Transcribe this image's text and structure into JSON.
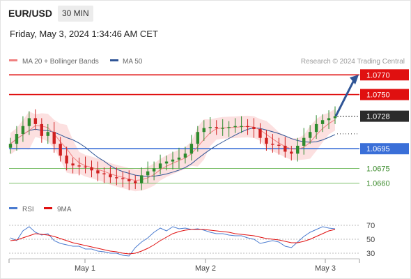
{
  "header": {
    "symbol": "EUR/USD",
    "timeframe": "30 MIN",
    "timestamp": "Friday, May 3, 2024 1:34:46 AM CET"
  },
  "legend": {
    "items": [
      {
        "label": "MA 20 + Bollinger Bands",
        "color": "#f08080"
      },
      {
        "label": "MA 50",
        "color": "#2f5596"
      }
    ],
    "credit": "Research © 2024 Trading Central"
  },
  "colors": {
    "resistance": "#e01010",
    "pivot": "#3a6fd8",
    "support": "#7bbf6a",
    "candle_up": "#2e8b2e",
    "candle_down": "#d02020",
    "bollinger_fill": "#fbd5d5",
    "ma20": "#f08080",
    "ma50": "#2f5596",
    "arrow": "#2f5596",
    "rsi": "#4a7bd0",
    "rsi_ma": "#e01010"
  },
  "chart_data": [
    {
      "type": "candlestick",
      "x_ticks": [
        "May 1",
        "May 2",
        "May 3"
      ],
      "ylim": [
        1.0647,
        1.0778
      ],
      "current_price": "1.0728",
      "levels": [
        {
          "value": 1.077,
          "label": "1.0770",
          "kind": "resistance",
          "boxed": true
        },
        {
          "value": 1.075,
          "label": "1.0750",
          "kind": "resistance",
          "boxed": true
        },
        {
          "value": 1.0695,
          "label": "1.0695",
          "kind": "pivot",
          "boxed": true
        },
        {
          "value": 1.0675,
          "label": "1.0675",
          "kind": "support",
          "boxed": false
        },
        {
          "value": 1.066,
          "label": "1.0660",
          "kind": "support",
          "boxed": false
        }
      ],
      "arrow": {
        "from_price": 1.0728,
        "to_price": 1.0768
      },
      "price_path": [
        1.07,
        1.071,
        1.0718,
        1.0726,
        1.072,
        1.0708,
        1.0712,
        1.07,
        1.0688,
        1.068,
        1.0678,
        1.0677,
        1.0676,
        1.0673,
        1.067,
        1.0669,
        1.0666,
        1.0665,
        1.0664,
        1.0662,
        1.066,
        1.0668,
        1.0672,
        1.0675,
        1.068,
        1.0682,
        1.0684,
        1.0686,
        1.069,
        1.07,
        1.0712,
        1.0716,
        1.0717,
        1.0716,
        1.0716,
        1.0717,
        1.0718,
        1.0718,
        1.0717,
        1.0715,
        1.0706,
        1.07,
        1.0699,
        1.0698,
        1.0692,
        1.069,
        1.0698,
        1.0706,
        1.0712,
        1.072,
        1.0724,
        1.0726,
        1.0728
      ]
    },
    {
      "type": "line",
      "title": "RSI",
      "legend": [
        "RSI",
        "9MA"
      ],
      "y_ticks": [
        70,
        50,
        30
      ],
      "ylim": [
        20,
        80
      ],
      "rsi": [
        52,
        48,
        62,
        68,
        60,
        56,
        58,
        48,
        44,
        42,
        40,
        40,
        36,
        36,
        33,
        32,
        30,
        30,
        27,
        26,
        38,
        46,
        52,
        60,
        66,
        62,
        68,
        65,
        66,
        64,
        65,
        63,
        60,
        58,
        58,
        56,
        55,
        55,
        52,
        50,
        44,
        46,
        48,
        46,
        40,
        38,
        46,
        54,
        60,
        64,
        68,
        66,
        65
      ],
      "ma": [
        48,
        49,
        52,
        55,
        58,
        57,
        56,
        54,
        51,
        48,
        45,
        43,
        41,
        39,
        37,
        35,
        33,
        32,
        30,
        29,
        30,
        33,
        37,
        42,
        48,
        53,
        58,
        61,
        63,
        64,
        64,
        64,
        63,
        62,
        61,
        60,
        58,
        57,
        56,
        55,
        53,
        51,
        50,
        49,
        47,
        45,
        45,
        47,
        50,
        54,
        58,
        62,
        64
      ]
    }
  ]
}
